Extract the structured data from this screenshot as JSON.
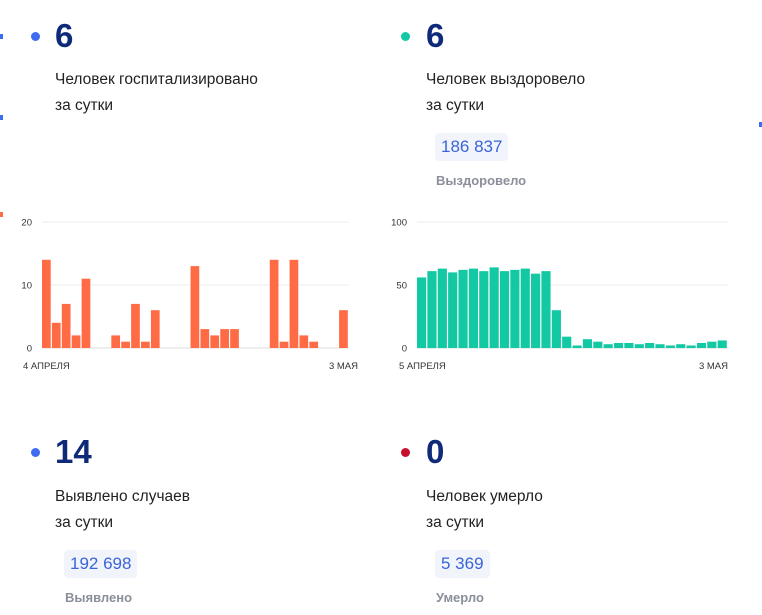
{
  "stats": {
    "hospitalized": {
      "value": "6",
      "line1": "Человек госпитализировано",
      "line2": "за сутки",
      "dot_color": "#3d6bf2"
    },
    "recovered": {
      "value": "6",
      "line1": "Человек выздоровело",
      "line2": "за сутки",
      "total": "186 837",
      "total_label": "Выздоровело",
      "dot_color": "#12c9a4"
    },
    "detected": {
      "value": "14",
      "line1": "Выявлено случаев",
      "line2": "за сутки",
      "total": "192 698",
      "total_label": "Выявлено",
      "dot_color": "#3d6bf2"
    },
    "died": {
      "value": "0",
      "line1": "Человек умерло",
      "line2": "за сутки",
      "total": "5 369",
      "total_label": "Умерло",
      "dot_color": "#c8102e"
    }
  },
  "chart_data": [
    {
      "type": "bar",
      "color": "#ff6b45",
      "x_start_label": "4 АПРЕЛЯ",
      "x_end_label": "3 МАЯ",
      "y_ticks": [
        0,
        10,
        20
      ],
      "ylim": [
        0,
        20
      ],
      "grid": true,
      "values": [
        14,
        4,
        7,
        2,
        11,
        0,
        0,
        2,
        1,
        7,
        1,
        6,
        0,
        0,
        0,
        13,
        3,
        2,
        3,
        3,
        0,
        0,
        0,
        14,
        1,
        14,
        2,
        1,
        0,
        0,
        6
      ]
    },
    {
      "type": "bar",
      "color": "#12c9a4",
      "x_start_label": "5 АПРЕЛЯ",
      "x_end_label": "3 МАЯ",
      "y_ticks": [
        0,
        50,
        100
      ],
      "ylim": [
        0,
        100
      ],
      "grid": true,
      "values": [
        56,
        61,
        63,
        60,
        62,
        63,
        61,
        64,
        61,
        62,
        63,
        59,
        61,
        30,
        9,
        2,
        7,
        5,
        3,
        4,
        4,
        3,
        4,
        3,
        2,
        3,
        2,
        4,
        5,
        6
      ]
    }
  ]
}
